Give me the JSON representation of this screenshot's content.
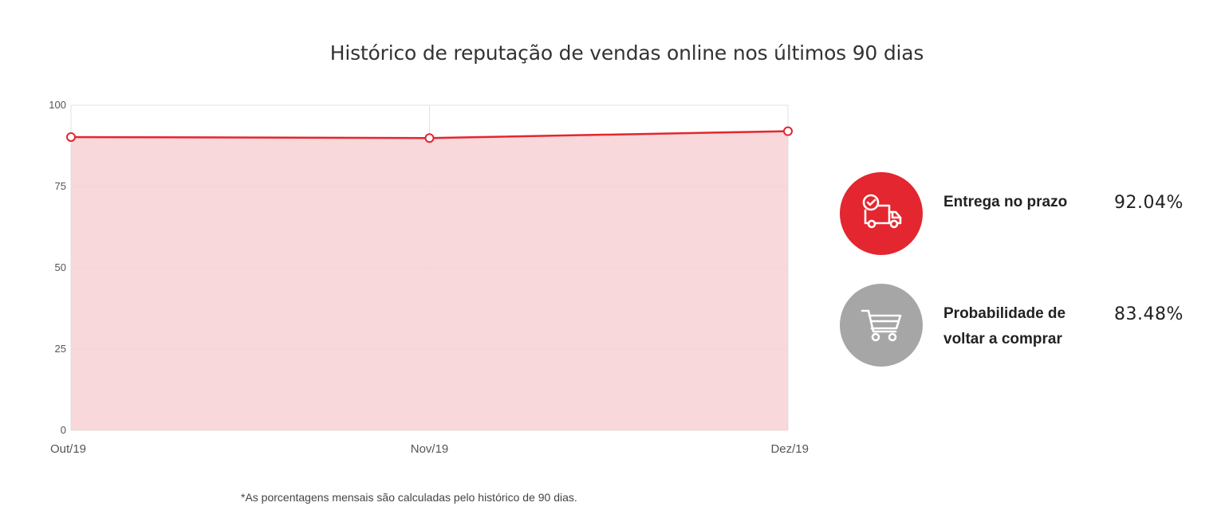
{
  "title": "Histórico de reputação de vendas online nos últimos 90 dias",
  "footnote": "*As porcentagens mensais são calculadas pelo histórico de 90 dias.",
  "colors": {
    "line": "#e3262f",
    "area": "#f7d4d6",
    "grid": "#e0e0e0",
    "metric_primary": "#e3262f",
    "metric_secondary": "#a6a6a6"
  },
  "chart_data": {
    "type": "area",
    "categories": [
      "Out/19",
      "Nov/19",
      "Dez/19"
    ],
    "series": [
      {
        "values": [
          90.2,
          89.9,
          92.0
        ]
      }
    ],
    "ylim": [
      0,
      100
    ],
    "yticks": [
      0,
      25,
      50,
      75,
      100
    ],
    "grid": true,
    "legend": "none"
  },
  "metrics": [
    {
      "label_lines": [
        "Entrega no prazo"
      ],
      "value": "92.04%",
      "icon": "delivery-truck-clock-icon",
      "color": "#e3262f"
    },
    {
      "label_lines": [
        "Probabilidade de",
        "voltar a comprar"
      ],
      "value": "83.48%",
      "icon": "shopping-cart-icon",
      "color": "#a6a6a6"
    }
  ]
}
